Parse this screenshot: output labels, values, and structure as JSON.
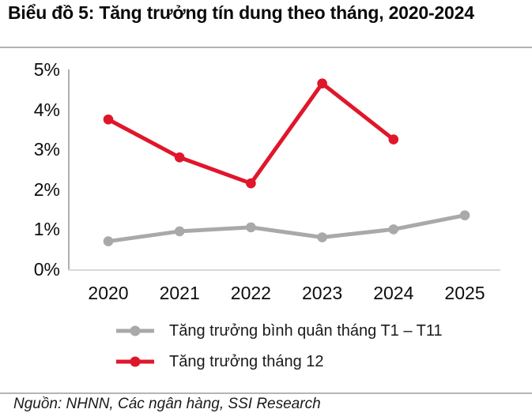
{
  "header": {
    "title": "Biểu đồ 5: Tăng trưởng tín dung theo tháng, 2020-2024"
  },
  "chart_data": {
    "type": "line",
    "title": "Biểu đồ 5: Tăng trưởng tín dung theo tháng, 2020-2024",
    "categories": [
      "2020",
      "2021",
      "2022",
      "2023",
      "2024",
      "2025"
    ],
    "series": [
      {
        "name": "Tăng trưởng bình quân tháng T1 – T11",
        "color": "#a9a9a9",
        "values": [
          0.7,
          0.95,
          1.05,
          0.8,
          1.0,
          1.35
        ]
      },
      {
        "name": "Tăng trưởng tháng 12",
        "color": "#e0162b",
        "values": [
          3.75,
          2.8,
          2.15,
          4.65,
          3.25,
          null
        ]
      }
    ],
    "xlabel": "",
    "ylabel": "",
    "ylim": [
      0,
      5
    ],
    "yticks": [
      "0%",
      "1%",
      "2%",
      "3%",
      "4%",
      "5%"
    ],
    "grid": false,
    "legend_position": "bottom-left",
    "marker": "circle",
    "axis_colors": {
      "y_axis": "#b0b0b0",
      "x_axis": "#d9d9d9"
    }
  },
  "footer": {
    "source": "Nguồn: NHNN, Các ngân hàng, SSI Research"
  }
}
